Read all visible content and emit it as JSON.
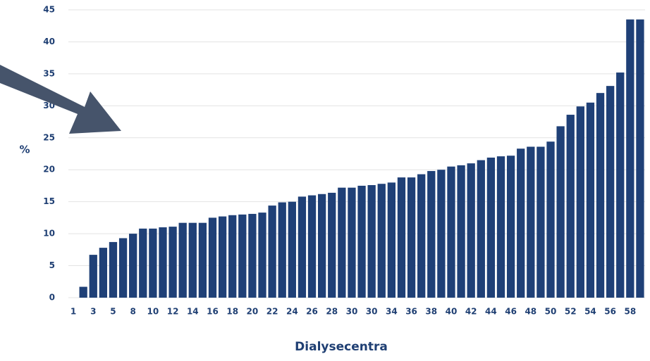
{
  "chart_data": {
    "type": "bar",
    "x_label": "Dialysecentra",
    "y_label": "%",
    "categories": [
      "1",
      null,
      "3",
      null,
      "5",
      null,
      "8",
      null,
      "10",
      null,
      "12",
      null,
      "14",
      null,
      "16",
      null,
      "18",
      null,
      "20",
      null,
      "22",
      null,
      "24",
      null,
      "26",
      null,
      "28",
      null,
      "30",
      null,
      "30",
      null,
      "34",
      null,
      "36",
      null,
      "38",
      null,
      "40",
      null,
      "42",
      null,
      "44",
      null,
      "46",
      null,
      "48",
      null,
      "50",
      null,
      "52",
      null,
      "54",
      null,
      "56",
      null,
      "58",
      null
    ],
    "values": [
      0,
      1.7,
      6.7,
      7.8,
      8.7,
      9.3,
      10.0,
      10.8,
      10.8,
      11.0,
      11.1,
      11.7,
      11.7,
      11.7,
      12.5,
      12.7,
      12.9,
      13.0,
      13.1,
      13.3,
      14.4,
      14.9,
      15.0,
      15.8,
      16.0,
      16.2,
      16.4,
      17.2,
      17.2,
      17.5,
      17.6,
      17.8,
      18.0,
      18.8,
      18.8,
      19.3,
      19.8,
      20.0,
      20.5,
      20.7,
      21.0,
      21.5,
      21.9,
      22.1,
      22.2,
      23.3,
      23.6,
      23.6,
      24.4,
      26.8,
      28.6,
      29.9,
      30.5,
      32.0,
      33.1,
      35.2,
      43.5,
      43.5
    ],
    "color": "#1f4077",
    "ylim": [
      0,
      45
    ],
    "yticks": [
      0,
      5,
      10,
      15,
      20,
      25,
      30,
      35,
      40,
      45
    ],
    "grid": true
  }
}
